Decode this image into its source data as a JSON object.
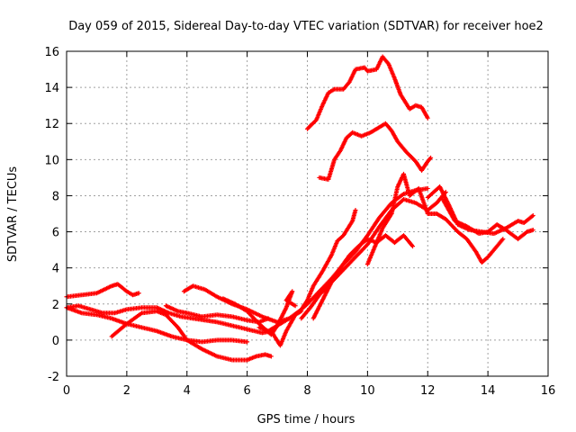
{
  "chart_data": {
    "type": "scatter",
    "title": "Day 059 of 2015, Sidereal Day-to-day VTEC variation (SDTVAR) for receiver hoe2",
    "xlabel": "GPS time / hours",
    "ylabel": "SDTVAR / TECUs",
    "xlim": [
      0,
      16
    ],
    "ylim": [
      -2,
      16
    ],
    "xticks": [
      0,
      2,
      4,
      6,
      8,
      10,
      12,
      14,
      16
    ],
    "yticks": [
      -2,
      0,
      2,
      4,
      6,
      8,
      10,
      12,
      14,
      16
    ],
    "grid": true,
    "marker": "+",
    "color": "#ff0000",
    "series": [
      {
        "points": [
          [
            0,
            2.4
          ],
          [
            0.5,
            2.5
          ],
          [
            1,
            2.6
          ],
          [
            1.5,
            3.0
          ],
          [
            1.7,
            3.1
          ],
          [
            2,
            2.7
          ],
          [
            2.2,
            2.5
          ],
          [
            2.4,
            2.6
          ]
        ]
      },
      {
        "points": [
          [
            0,
            1.8
          ],
          [
            0.4,
            1.9
          ],
          [
            0.8,
            1.7
          ],
          [
            1.2,
            1.5
          ],
          [
            1.6,
            1.5
          ],
          [
            2.0,
            1.7
          ],
          [
            2.5,
            1.8
          ],
          [
            3.0,
            1.8
          ],
          [
            3.4,
            1.5
          ],
          [
            3.8,
            1.3
          ],
          [
            4.2,
            1.2
          ],
          [
            4.6,
            1.1
          ],
          [
            5.0,
            1.0
          ],
          [
            5.5,
            0.8
          ],
          [
            6.0,
            0.6
          ],
          [
            6.5,
            0.4
          ],
          [
            6.8,
            0.5
          ]
        ]
      },
      {
        "points": [
          [
            0,
            1.8
          ],
          [
            0.5,
            1.5
          ],
          [
            1.0,
            1.4
          ],
          [
            1.5,
            1.2
          ],
          [
            2.0,
            0.9
          ],
          [
            2.5,
            0.7
          ],
          [
            3.0,
            0.5
          ],
          [
            3.5,
            0.2
          ],
          [
            4.0,
            0.0
          ],
          [
            4.5,
            -0.1
          ],
          [
            5.0,
            0.0
          ],
          [
            5.5,
            0.0
          ],
          [
            6.0,
            -0.1
          ]
        ]
      },
      {
        "points": [
          [
            1.5,
            0.2
          ],
          [
            2.0,
            0.9
          ],
          [
            2.5,
            1.5
          ],
          [
            3.0,
            1.6
          ],
          [
            3.3,
            1.4
          ],
          [
            3.7,
            0.7
          ],
          [
            4.0,
            0.0
          ],
          [
            4.5,
            -0.5
          ],
          [
            5.0,
            -0.9
          ],
          [
            5.5,
            -1.1
          ],
          [
            6.0,
            -1.1
          ],
          [
            6.3,
            -0.9
          ],
          [
            6.6,
            -0.8
          ],
          [
            6.8,
            -0.9
          ]
        ]
      },
      {
        "points": [
          [
            3.3,
            1.9
          ],
          [
            3.7,
            1.6
          ],
          [
            4.0,
            1.5
          ],
          [
            4.5,
            1.3
          ],
          [
            5.0,
            1.4
          ],
          [
            5.5,
            1.3
          ],
          [
            6.0,
            1.1
          ],
          [
            6.4,
            1.0
          ],
          [
            6.7,
            1.2
          ]
        ]
      },
      {
        "points": [
          [
            3.9,
            2.7
          ],
          [
            4.2,
            3.0
          ],
          [
            4.6,
            2.8
          ],
          [
            5.0,
            2.4
          ],
          [
            5.5,
            2.0
          ],
          [
            6.0,
            1.7
          ],
          [
            6.5,
            1.3
          ],
          [
            7.0,
            1.0
          ],
          [
            7.4,
            1.2
          ],
          [
            7.8,
            1.6
          ]
        ]
      },
      {
        "points": [
          [
            5.2,
            2.3
          ],
          [
            5.6,
            2.0
          ],
          [
            6.0,
            1.6
          ],
          [
            6.4,
            0.9
          ],
          [
            6.8,
            0.3
          ],
          [
            7.0,
            0.8
          ],
          [
            7.3,
            1.8
          ],
          [
            7.5,
            2.7
          ],
          [
            7.3,
            2.2
          ],
          [
            7.6,
            1.9
          ]
        ]
      },
      {
        "points": [
          [
            6.4,
            0.7
          ],
          [
            6.7,
            0.5
          ],
          [
            7.0,
            0.8
          ],
          [
            7.4,
            1.2
          ],
          [
            7.8,
            1.7
          ],
          [
            8.0,
            2.2
          ],
          [
            8.2,
            3.0
          ],
          [
            8.5,
            3.8
          ],
          [
            8.8,
            4.7
          ],
          [
            9.0,
            5.5
          ],
          [
            9.2,
            5.8
          ],
          [
            9.5,
            6.6
          ],
          [
            9.6,
            7.2
          ]
        ]
      },
      {
        "points": [
          [
            6.8,
            0.5
          ],
          [
            7.1,
            -0.3
          ],
          [
            7.3,
            0.5
          ],
          [
            7.6,
            1.4
          ],
          [
            8.0,
            2.0
          ],
          [
            8.4,
            2.7
          ],
          [
            8.8,
            3.4
          ],
          [
            9.2,
            4.2
          ],
          [
            9.6,
            4.9
          ],
          [
            10.0,
            5.8
          ],
          [
            10.4,
            6.8
          ],
          [
            10.8,
            7.6
          ],
          [
            11.2,
            8.1
          ],
          [
            11.6,
            8.3
          ],
          [
            12.0,
            8.4
          ]
        ]
      },
      {
        "points": [
          [
            7.8,
            1.2
          ],
          [
            8.1,
            1.8
          ],
          [
            8.4,
            2.5
          ],
          [
            8.8,
            3.2
          ],
          [
            9.2,
            3.9
          ],
          [
            9.6,
            4.6
          ],
          [
            10.0,
            5.3
          ],
          [
            10.4,
            6.3
          ],
          [
            10.8,
            7.2
          ],
          [
            11.2,
            7.8
          ],
          [
            11.6,
            7.6
          ],
          [
            12.0,
            7.2
          ],
          [
            12.3,
            7.6
          ],
          [
            12.6,
            8.2
          ]
        ]
      },
      {
        "points": [
          [
            8.2,
            1.2
          ],
          [
            8.5,
            2.2
          ],
          [
            8.8,
            3.2
          ],
          [
            9.1,
            4.0
          ],
          [
            9.4,
            4.7
          ],
          [
            9.7,
            5.2
          ],
          [
            10.0,
            5.6
          ],
          [
            10.3,
            5.4
          ],
          [
            10.6,
            5.8
          ],
          [
            10.9,
            5.4
          ],
          [
            11.2,
            5.8
          ],
          [
            11.5,
            5.2
          ]
        ]
      },
      {
        "points": [
          [
            10.0,
            4.2
          ],
          [
            10.2,
            5.0
          ],
          [
            10.5,
            6.2
          ],
          [
            10.8,
            7.0
          ],
          [
            11.0,
            8.5
          ],
          [
            11.2,
            9.2
          ],
          [
            11.4,
            8.0
          ],
          [
            11.7,
            8.4
          ],
          [
            12.0,
            7.0
          ],
          [
            12.3,
            7.0
          ],
          [
            12.6,
            6.7
          ],
          [
            13.0,
            6.0
          ],
          [
            13.3,
            5.6
          ],
          [
            13.6,
            4.9
          ],
          [
            13.8,
            4.3
          ],
          [
            14.0,
            4.6
          ],
          [
            14.3,
            5.2
          ],
          [
            14.5,
            5.6
          ]
        ]
      },
      {
        "points": [
          [
            12.0,
            7.9
          ],
          [
            12.4,
            8.5
          ],
          [
            12.7,
            7.5
          ],
          [
            13.0,
            6.4
          ],
          [
            13.4,
            6.1
          ],
          [
            13.8,
            6.0
          ],
          [
            14.2,
            5.9
          ],
          [
            14.6,
            6.2
          ],
          [
            15.0,
            6.6
          ],
          [
            15.2,
            6.5
          ],
          [
            15.5,
            6.9
          ]
        ]
      },
      {
        "points": [
          [
            12.5,
            7.8
          ],
          [
            12.9,
            6.6
          ],
          [
            13.3,
            6.3
          ],
          [
            13.7,
            5.9
          ],
          [
            14.0,
            6.0
          ],
          [
            14.3,
            6.4
          ],
          [
            14.6,
            6.1
          ],
          [
            15.0,
            5.6
          ],
          [
            15.3,
            6.0
          ],
          [
            15.5,
            6.1
          ]
        ]
      },
      {
        "points": [
          [
            8.0,
            11.7
          ],
          [
            8.3,
            12.2
          ],
          [
            8.5,
            13.0
          ],
          [
            8.7,
            13.7
          ],
          [
            8.9,
            13.9
          ],
          [
            9.2,
            13.9
          ],
          [
            9.4,
            14.3
          ],
          [
            9.6,
            15.0
          ],
          [
            9.9,
            15.1
          ],
          [
            10.0,
            14.9
          ],
          [
            10.3,
            15.0
          ],
          [
            10.5,
            15.7
          ],
          [
            10.7,
            15.3
          ],
          [
            10.9,
            14.5
          ],
          [
            11.1,
            13.6
          ],
          [
            11.4,
            12.8
          ],
          [
            11.6,
            13.0
          ],
          [
            11.8,
            12.9
          ],
          [
            12.0,
            12.3
          ]
        ]
      },
      {
        "points": [
          [
            8.4,
            9.0
          ],
          [
            8.7,
            8.9
          ],
          [
            8.9,
            10.0
          ],
          [
            9.1,
            10.5
          ],
          [
            9.3,
            11.2
          ],
          [
            9.5,
            11.5
          ],
          [
            9.8,
            11.3
          ],
          [
            10.1,
            11.5
          ],
          [
            10.4,
            11.8
          ],
          [
            10.6,
            12.0
          ],
          [
            10.8,
            11.6
          ],
          [
            11.0,
            11.0
          ],
          [
            11.3,
            10.4
          ],
          [
            11.6,
            9.9
          ],
          [
            11.8,
            9.4
          ],
          [
            12.0,
            9.9
          ],
          [
            12.1,
            10.1
          ]
        ]
      }
    ]
  }
}
